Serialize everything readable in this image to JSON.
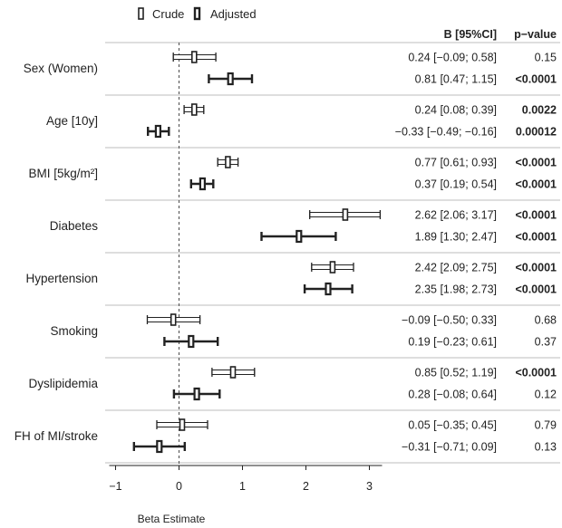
{
  "chart_data": {
    "type": "forest",
    "xlabel": "Beta Estimate",
    "xlim": [
      -1.1,
      3.2
    ],
    "xticks": [
      -1,
      0,
      1,
      2,
      3
    ],
    "reference_line": 0,
    "legend": {
      "position": "top-left",
      "entries": [
        "Crude",
        "Adjusted"
      ]
    },
    "columns": {
      "estimate": "B [95%CI]",
      "pvalue": "p−value"
    },
    "series": [
      {
        "name": "Crude",
        "color": "#ffffff",
        "stroke": "#222222"
      },
      {
        "name": "Adjusted",
        "color": "#222222",
        "stroke": "#222222"
      }
    ],
    "groups": [
      {
        "label": "Sex (Women)",
        "rows": [
          {
            "series": "Crude",
            "estimate": 0.24,
            "lower": -0.09,
            "upper": 0.58,
            "ci_text": "0.24 [−0.09; 0.58]",
            "p": "0.15",
            "significant": false
          },
          {
            "series": "Adjusted",
            "estimate": 0.81,
            "lower": 0.47,
            "upper": 1.15,
            "ci_text": "0.81 [0.47; 1.15]",
            "p": "<0.0001",
            "significant": true
          }
        ]
      },
      {
        "label": "Age [10y]",
        "rows": [
          {
            "series": "Crude",
            "estimate": 0.24,
            "lower": 0.08,
            "upper": 0.39,
            "ci_text": "0.24 [0.08; 0.39]",
            "p": "0.0022",
            "significant": true
          },
          {
            "series": "Adjusted",
            "estimate": -0.33,
            "lower": -0.49,
            "upper": -0.16,
            "ci_text": "−0.33 [−0.49; −0.16]",
            "p": "0.00012",
            "significant": true
          }
        ]
      },
      {
        "label": "BMI [5kg/m²]",
        "rows": [
          {
            "series": "Crude",
            "estimate": 0.77,
            "lower": 0.61,
            "upper": 0.93,
            "ci_text": "0.77 [0.61; 0.93]",
            "p": "<0.0001",
            "significant": true
          },
          {
            "series": "Adjusted",
            "estimate": 0.37,
            "lower": 0.19,
            "upper": 0.54,
            "ci_text": "0.37 [0.19; 0.54]",
            "p": "<0.0001",
            "significant": true
          }
        ]
      },
      {
        "label": "Diabetes",
        "rows": [
          {
            "series": "Crude",
            "estimate": 2.62,
            "lower": 2.06,
            "upper": 3.17,
            "ci_text": "2.62 [2.06; 3.17]",
            "p": "<0.0001",
            "significant": true
          },
          {
            "series": "Adjusted",
            "estimate": 1.89,
            "lower": 1.3,
            "upper": 2.47,
            "ci_text": "1.89 [1.30; 2.47]",
            "p": "<0.0001",
            "significant": true
          }
        ]
      },
      {
        "label": "Hypertension",
        "rows": [
          {
            "series": "Crude",
            "estimate": 2.42,
            "lower": 2.09,
            "upper": 2.75,
            "ci_text": "2.42 [2.09; 2.75]",
            "p": "<0.0001",
            "significant": true
          },
          {
            "series": "Adjusted",
            "estimate": 2.35,
            "lower": 1.98,
            "upper": 2.73,
            "ci_text": "2.35 [1.98; 2.73]",
            "p": "<0.0001",
            "significant": true
          }
        ]
      },
      {
        "label": "Smoking",
        "rows": [
          {
            "series": "Crude",
            "estimate": -0.09,
            "lower": -0.5,
            "upper": 0.33,
            "ci_text": "−0.09 [−0.50; 0.33]",
            "p": "0.68",
            "significant": false
          },
          {
            "series": "Adjusted",
            "estimate": 0.19,
            "lower": -0.23,
            "upper": 0.61,
            "ci_text": "0.19 [−0.23; 0.61]",
            "p": "0.37",
            "significant": false
          }
        ]
      },
      {
        "label": "Dyslipidemia",
        "rows": [
          {
            "series": "Crude",
            "estimate": 0.85,
            "lower": 0.52,
            "upper": 1.19,
            "ci_text": "0.85 [0.52; 1.19]",
            "p": "<0.0001",
            "significant": true
          },
          {
            "series": "Adjusted",
            "estimate": 0.28,
            "lower": -0.08,
            "upper": 0.64,
            "ci_text": "0.28 [−0.08; 0.64]",
            "p": "0.12",
            "significant": false
          }
        ]
      },
      {
        "label": "FH of MI/stroke",
        "rows": [
          {
            "series": "Crude",
            "estimate": 0.05,
            "lower": -0.35,
            "upper": 0.45,
            "ci_text": "0.05 [−0.35; 0.45]",
            "p": "0.79",
            "significant": false
          },
          {
            "series": "Adjusted",
            "estimate": -0.31,
            "lower": -0.71,
            "upper": 0.09,
            "ci_text": "−0.31 [−0.71; 0.09]",
            "p": "0.13",
            "significant": false
          }
        ]
      }
    ]
  }
}
